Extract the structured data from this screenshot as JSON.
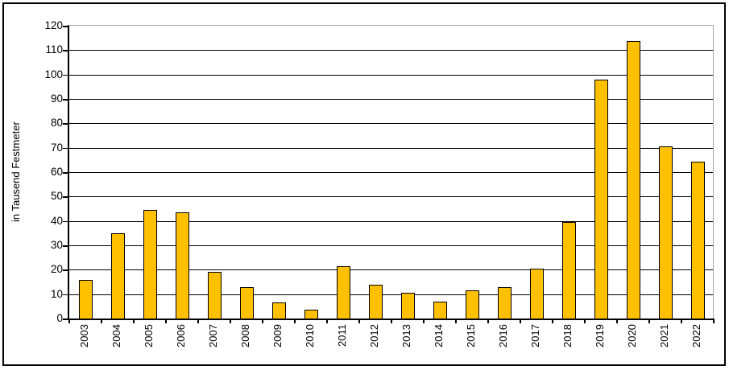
{
  "chart_data": {
    "type": "bar",
    "title": "",
    "xlabel": "",
    "ylabel": "in Tausend Festmeter",
    "categories": [
      "2003",
      "2004",
      "2005",
      "2006",
      "2007",
      "2008",
      "2009",
      "2010",
      "2011",
      "2012",
      "2013",
      "2014",
      "2015",
      "2016",
      "2017",
      "2018",
      "2019",
      "2020",
      "2021",
      "2022"
    ],
    "values": [
      16,
      35,
      44.5,
      43.5,
      19,
      13,
      6.5,
      3.5,
      21.5,
      14,
      10.5,
      7,
      11.5,
      13,
      20.5,
      39.5,
      98,
      113.7,
      70.7,
      64.4
    ],
    "ylim": [
      0,
      120
    ],
    "yticks": [
      0,
      10,
      20,
      30,
      40,
      50,
      60,
      70,
      80,
      90,
      100,
      110,
      120
    ],
    "grid": "horizontal",
    "legend": false,
    "colors": {
      "bar_fill": "#FFC000",
      "bar_border": "#000000",
      "gridline": "#000000",
      "plot_border_gray": "#A6A6A6",
      "axis": "#000000",
      "text": "#000000",
      "background": "#FFFFFF",
      "outer_border": "#000000"
    }
  }
}
